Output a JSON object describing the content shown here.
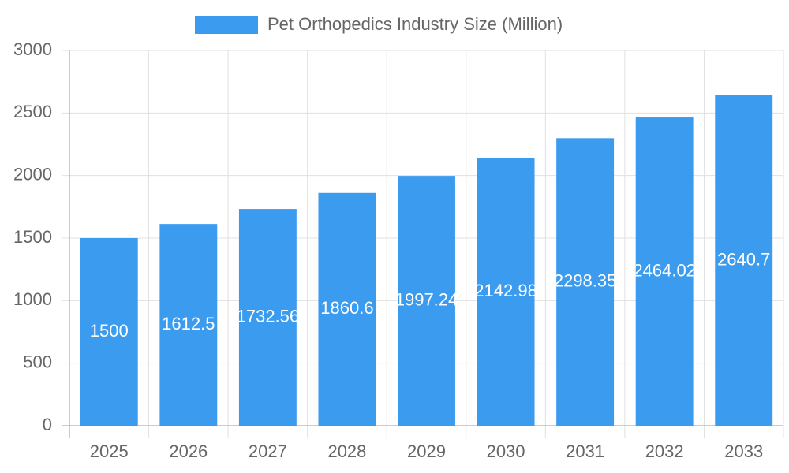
{
  "chart_data": {
    "type": "bar",
    "categories": [
      "2025",
      "2026",
      "2027",
      "2028",
      "2029",
      "2030",
      "2031",
      "2032",
      "2033"
    ],
    "series": [
      {
        "name": "Pet Orthopedics Industry Size (Million)",
        "color": "#3a9bef",
        "values": [
          1500,
          1612.5,
          1732.56,
          1860.6,
          1997.24,
          2142.98,
          2298.35,
          2464.02,
          2640.7
        ]
      }
    ],
    "ylim": [
      0,
      3000
    ],
    "yticks": [
      0,
      500,
      1000,
      1500,
      2000,
      2500,
      3000
    ],
    "grid": true,
    "legend": "top"
  }
}
